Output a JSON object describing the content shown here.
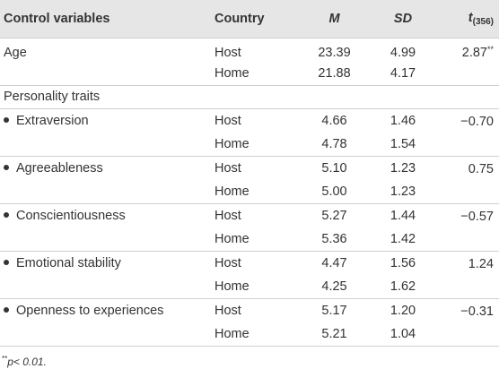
{
  "header": {
    "col1": "Control variables",
    "col2": "Country",
    "col3": "M",
    "col4": "SD",
    "col5_main": "t",
    "col5_sub": "(356)"
  },
  "rows": [
    {
      "label": "Age",
      "bullet": false,
      "country": "Host",
      "m": "23.39",
      "sd": "4.99",
      "t": "2.87",
      "t_sup": "**"
    },
    {
      "label": "",
      "bullet": false,
      "country": "Home",
      "m": "21.88",
      "sd": "4.17",
      "t": "",
      "t_sup": ""
    },
    {
      "label": "Personality traits",
      "bullet": false,
      "country": "",
      "m": "",
      "sd": "",
      "t": "",
      "t_sup": ""
    },
    {
      "label": "Extraversion",
      "bullet": true,
      "country": "Host",
      "m": "4.66",
      "sd": "1.46",
      "t": "−0.70",
      "t_sup": ""
    },
    {
      "label": "",
      "bullet": false,
      "country": "Home",
      "m": "4.78",
      "sd": "1.54",
      "t": "",
      "t_sup": ""
    },
    {
      "label": "Agreeableness",
      "bullet": true,
      "country": "Host",
      "m": "5.10",
      "sd": "1.23",
      "t": "0.75",
      "t_sup": ""
    },
    {
      "label": "",
      "bullet": false,
      "country": "Home",
      "m": "5.00",
      "sd": "1.23",
      "t": "",
      "t_sup": ""
    },
    {
      "label": "Conscientiousness",
      "bullet": true,
      "country": "Host",
      "m": "5.27",
      "sd": "1.44",
      "t": "−0.57",
      "t_sup": ""
    },
    {
      "label": "",
      "bullet": false,
      "country": "Home",
      "m": "5.36",
      "sd": "1.42",
      "t": "",
      "t_sup": ""
    },
    {
      "label": "Emotional stability",
      "bullet": true,
      "country": "Host",
      "m": "4.47",
      "sd": "1.56",
      "t": "1.24",
      "t_sup": ""
    },
    {
      "label": "",
      "bullet": false,
      "country": "Home",
      "m": "4.25",
      "sd": "1.62",
      "t": "",
      "t_sup": ""
    },
    {
      "label": "Openness to experiences",
      "bullet": true,
      "country": "Host",
      "m": "5.17",
      "sd": "1.20",
      "t": "−0.31",
      "t_sup": ""
    },
    {
      "label": "",
      "bullet": false,
      "country": "Home",
      "m": "5.21",
      "sd": "1.04",
      "t": "",
      "t_sup": ""
    }
  ],
  "footnote": {
    "sup": "**",
    "text": "p< 0.01."
  }
}
